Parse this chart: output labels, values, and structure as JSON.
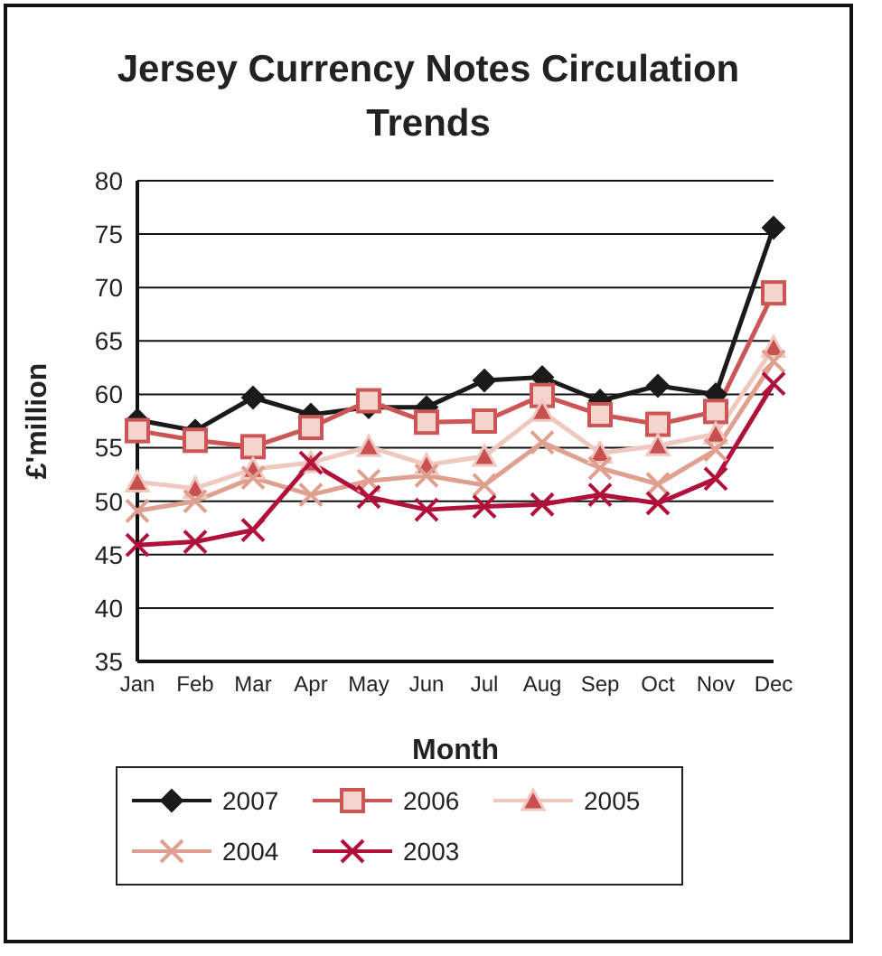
{
  "chart_data": {
    "type": "line",
    "title": "Jersey Currency Notes Circulation Trends",
    "xlabel": "Month",
    "ylabel": "£'million",
    "categories": [
      "Jan",
      "Feb",
      "Mar",
      "Apr",
      "May",
      "Jun",
      "Jul",
      "Aug",
      "Sep",
      "Oct",
      "Nov",
      "Dec"
    ],
    "series": [
      {
        "name": "2007",
        "color": "#1a1a1a",
        "marker": "diamond",
        "values": [
          57.6,
          56.6,
          59.7,
          58.1,
          58.8,
          58.8,
          61.3,
          61.6,
          59.4,
          60.8,
          60.0,
          75.6
        ]
      },
      {
        "name": "2006",
        "color": "#cc5555",
        "marker": "square",
        "values": [
          56.6,
          55.7,
          55.1,
          56.9,
          59.4,
          57.4,
          57.5,
          59.9,
          58.1,
          57.2,
          58.4,
          69.5
        ]
      },
      {
        "name": "2005",
        "color": "#f0c8c0",
        "marker": "triangle",
        "values": [
          51.8,
          51.2,
          53.0,
          53.6,
          55.1,
          53.4,
          54.2,
          58.4,
          54.5,
          55.2,
          56.3,
          64.4
        ]
      },
      {
        "name": "2004",
        "color": "#e0a090",
        "marker": "cross",
        "values": [
          49.1,
          50.0,
          52.2,
          50.6,
          51.9,
          52.4,
          51.5,
          55.5,
          53.1,
          51.6,
          54.8,
          63.1
        ]
      },
      {
        "name": "2003",
        "color": "#b0103a",
        "marker": "cross",
        "values": [
          45.9,
          46.2,
          47.3,
          53.6,
          50.4,
          49.2,
          49.5,
          49.7,
          50.6,
          49.8,
          52.1,
          61.0
        ]
      }
    ],
    "ylim": [
      35,
      80
    ],
    "yticks": [
      35,
      40,
      45,
      50,
      55,
      60,
      65,
      70,
      75,
      80
    ],
    "grid": "y",
    "legend": "bottom",
    "line_style": "solid"
  }
}
